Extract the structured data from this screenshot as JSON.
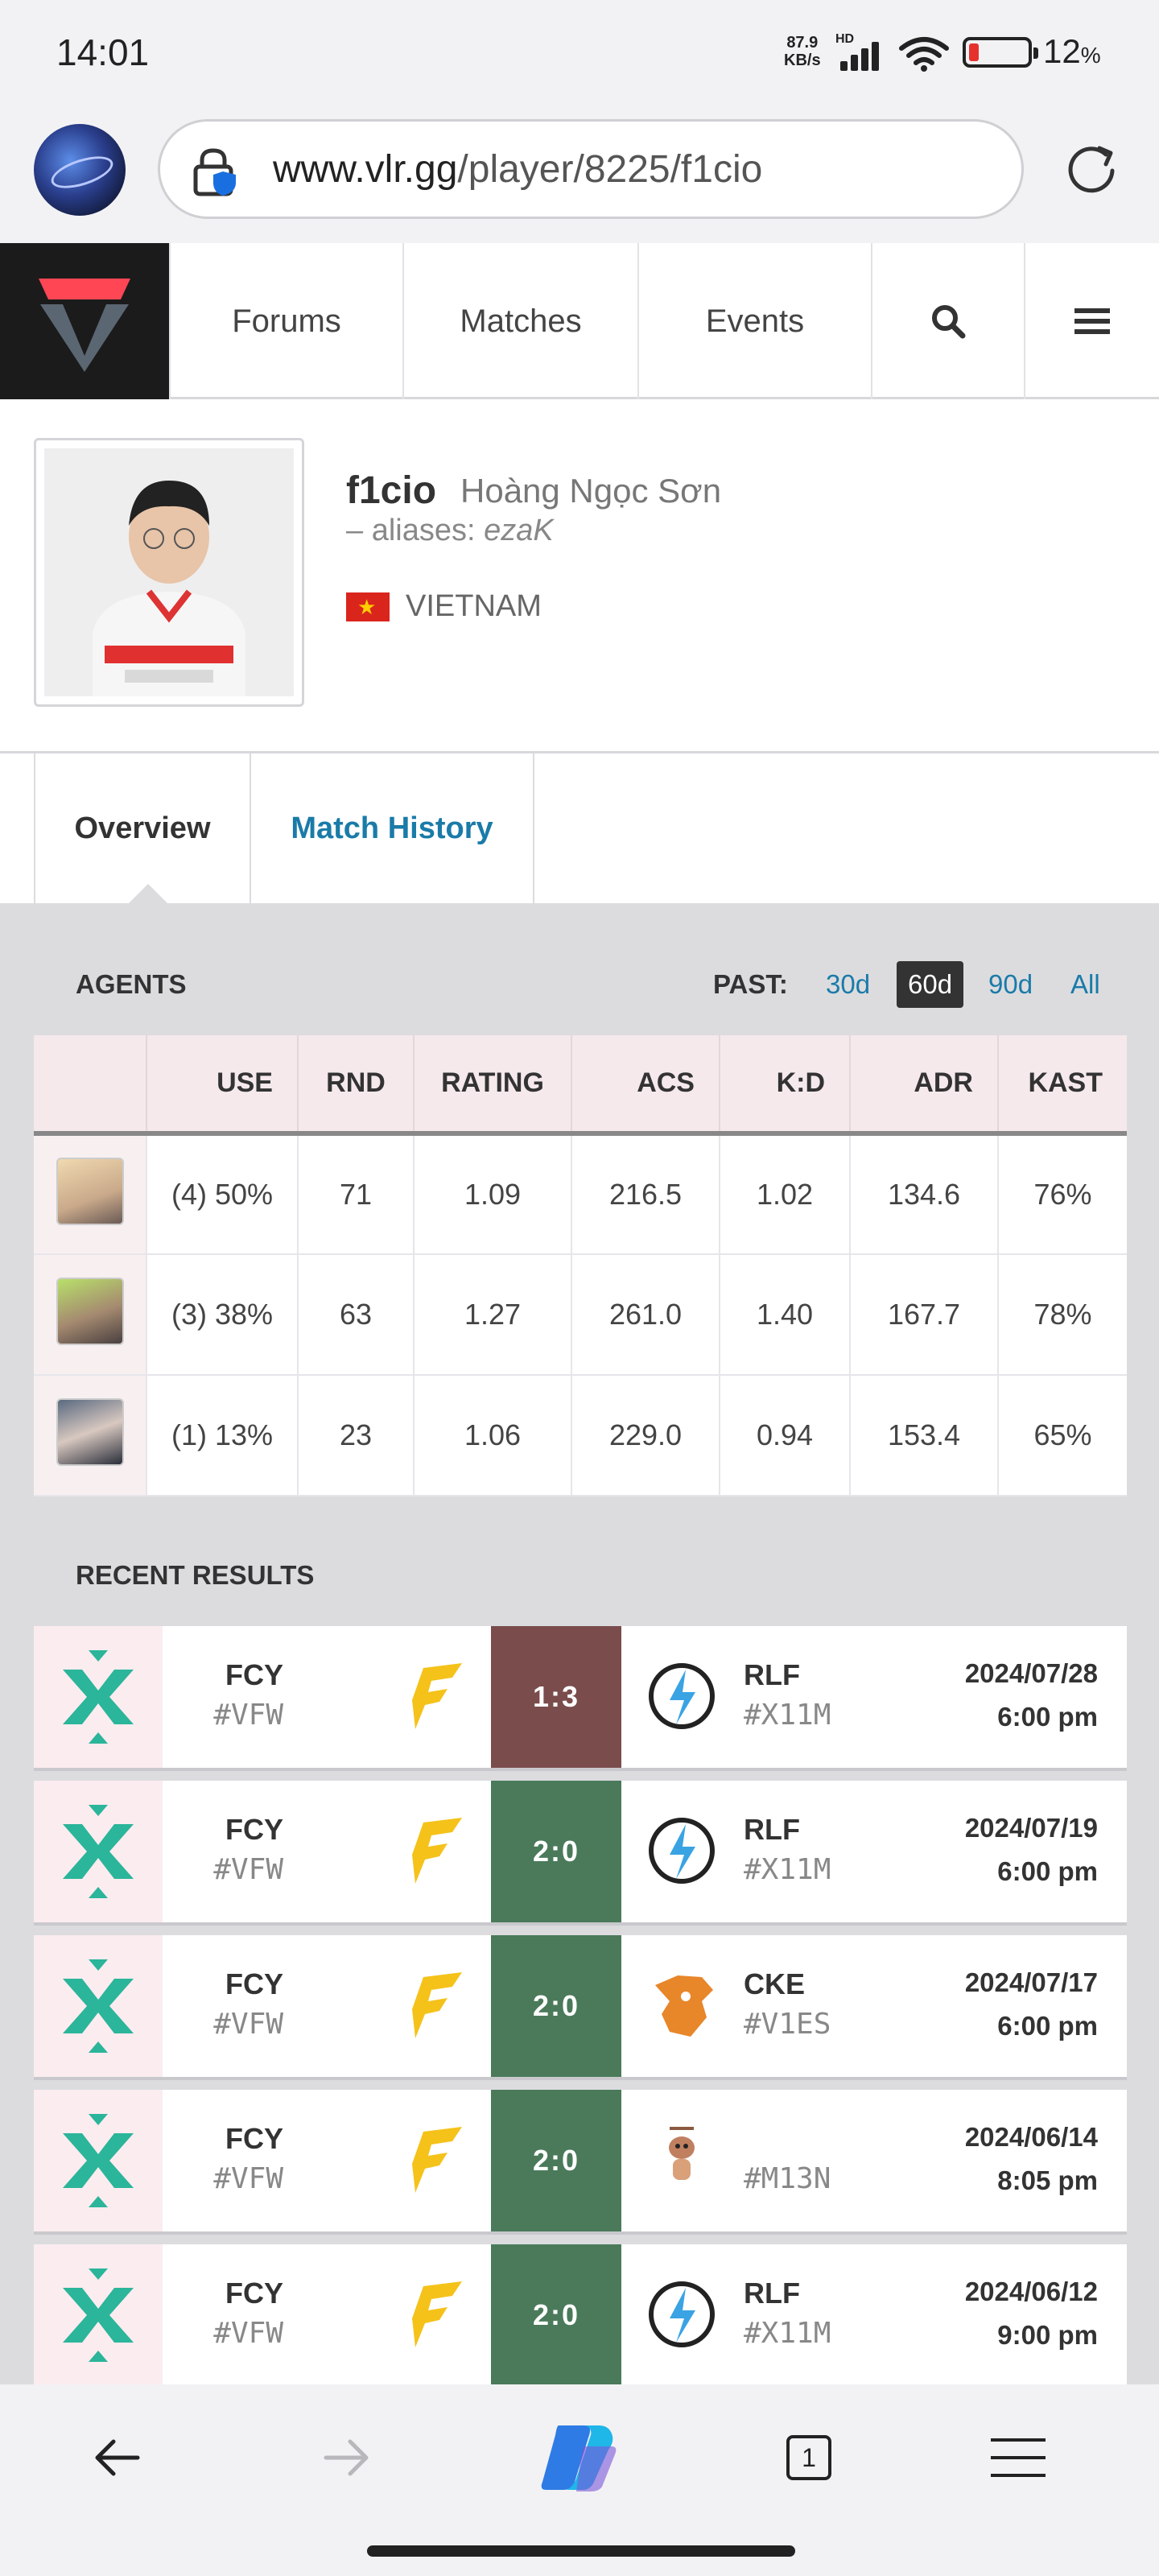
{
  "status": {
    "time": "14:01",
    "net_speed": "87.9",
    "net_unit": "KB/s",
    "hd": "HD",
    "battery": "12",
    "battery_unit": "%"
  },
  "browser": {
    "url_domain": "www.vlr.gg",
    "url_path": "/player/8225/f1cio"
  },
  "nav": {
    "items": [
      "Forums",
      "Matches",
      "Events"
    ]
  },
  "player": {
    "handle": "f1cio",
    "real_name": "Hoàng Ngọc Sơn",
    "aliases_prefix": "– aliases: ",
    "aliases": "ezaK",
    "country": "VIETNAM"
  },
  "tabs": {
    "overview": "Overview",
    "match_history": "Match History"
  },
  "agents": {
    "title": "AGENTS",
    "past_label": "PAST:",
    "periods": [
      "30d",
      "60d",
      "90d",
      "All"
    ],
    "active_period": "60d",
    "headers": [
      "USE",
      "RND",
      "RATING",
      "ACS",
      "K:D",
      "ADR",
      "KAST"
    ],
    "rows": [
      {
        "use": "(4) 50%",
        "rnd": "71",
        "rating": "1.09",
        "acs": "216.5",
        "kd": "1.02",
        "adr": "134.6",
        "kast": "76%"
      },
      {
        "use": "(3) 38%",
        "rnd": "63",
        "rating": "1.27",
        "acs": "261.0",
        "kd": "1.40",
        "adr": "167.7",
        "kast": "78%"
      },
      {
        "use": "(1) 13%",
        "rnd": "23",
        "rating": "1.06",
        "acs": "229.0",
        "kd": "0.94",
        "adr": "153.4",
        "kast": "65%"
      }
    ]
  },
  "results": {
    "title": "RECENT RESULTS",
    "rows": [
      {
        "team1": "FCY",
        "tag1": "#VFW",
        "score": "1:3",
        "outcome": "loss",
        "team2": "RLF",
        "tag2": "#X11M",
        "date": "2024/07/28",
        "time": "6:00 pm"
      },
      {
        "team1": "FCY",
        "tag1": "#VFW",
        "score": "2:0",
        "outcome": "win",
        "team2": "RLF",
        "tag2": "#X11M",
        "date": "2024/07/19",
        "time": "6:00 pm"
      },
      {
        "team1": "FCY",
        "tag1": "#VFW",
        "score": "2:0",
        "outcome": "win",
        "team2": "CKE",
        "tag2": "#V1ES",
        "date": "2024/07/17",
        "time": "6:00 pm"
      },
      {
        "team1": "FCY",
        "tag1": "#VFW",
        "score": "2:0",
        "outcome": "win",
        "team2": "",
        "tag2": "#M13N",
        "date": "2024/06/14",
        "time": "8:05 pm"
      },
      {
        "team1": "FCY",
        "tag1": "#VFW",
        "score": "2:0",
        "outcome": "win",
        "team2": "RLF",
        "tag2": "#X11M",
        "date": "2024/06/12",
        "time": "9:00 pm"
      }
    ]
  },
  "bottom": {
    "tab_count": "1"
  },
  "colors": {
    "accent_link": "#1a7ba8",
    "win": "#4a7a5a",
    "loss": "#7a4c4c",
    "event_icon": "#2bb59a"
  }
}
